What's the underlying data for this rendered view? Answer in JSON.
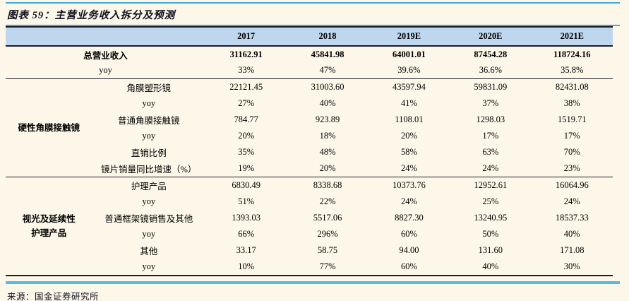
{
  "title": "图表 59：主营业务收入拆分及预测",
  "source": "来源：国金证券研究所",
  "colors": {
    "page_background": "#FDF7E9",
    "header_fill": "#BED7EE",
    "accent_blue_line": "#3FA8DB",
    "footer_blue_line": "#55BBE3",
    "border_dark": "#1C1C28"
  },
  "table": {
    "columns": [
      "2017",
      "2018",
      "2019E",
      "2020E",
      "2021E"
    ],
    "sections": [
      {
        "group": "",
        "rows": [
          {
            "label": "总营业收入",
            "bold": true,
            "values": [
              "31162.91",
              "45841.98",
              "64001.01",
              "87454.28",
              "118724.16"
            ]
          },
          {
            "label": "yoy",
            "values": [
              "33%",
              "47%",
              "39.6%",
              "36.6%",
              "35.8%"
            ]
          }
        ]
      },
      {
        "group": "硬性角膜接触镜",
        "rows": [
          {
            "label": "角膜塑形镜",
            "values": [
              "22121.45",
              "31003.60",
              "43597.94",
              "59831.09",
              "82431.08"
            ]
          },
          {
            "label": "yoy",
            "values": [
              "27%",
              "40%",
              "41%",
              "37%",
              "38%"
            ]
          },
          {
            "label": "普通角膜接触镜",
            "values": [
              "784.77",
              "923.89",
              "1108.01",
              "1298.03",
              "1519.71"
            ]
          },
          {
            "label": "yoy",
            "values": [
              "20%",
              "18%",
              "20%",
              "17%",
              "17%"
            ]
          },
          {
            "label": "直销比例",
            "values": [
              "35%",
              "48%",
              "58%",
              "63%",
              "70%"
            ]
          },
          {
            "label": "镜片销量同比增速（%）",
            "values": [
              "19%",
              "20%",
              "24%",
              "24%",
              "23%"
            ]
          }
        ]
      },
      {
        "group": "视光及延续性\n护理产品",
        "rows": [
          {
            "label": "护理产品",
            "values": [
              "6830.49",
              "8338.68",
              "10373.76",
              "12952.61",
              "16064.96"
            ]
          },
          {
            "label": "yoy",
            "values": [
              "51%",
              "22%",
              "24%",
              "25%",
              "24%"
            ]
          },
          {
            "label": "普通框架镜销售及其他",
            "values": [
              "1393.03",
              "5517.06",
              "8827.30",
              "13240.95",
              "18537.33"
            ]
          },
          {
            "label": "yoy",
            "values": [
              "66%",
              "296%",
              "60%",
              "50%",
              "40%"
            ]
          },
          {
            "label": "其他",
            "values": [
              "33.17",
              "58.75",
              "94.00",
              "131.60",
              "171.08"
            ]
          },
          {
            "label": "yoy",
            "values": [
              "10%",
              "77%",
              "60%",
              "40%",
              "30%"
            ]
          }
        ]
      }
    ]
  }
}
